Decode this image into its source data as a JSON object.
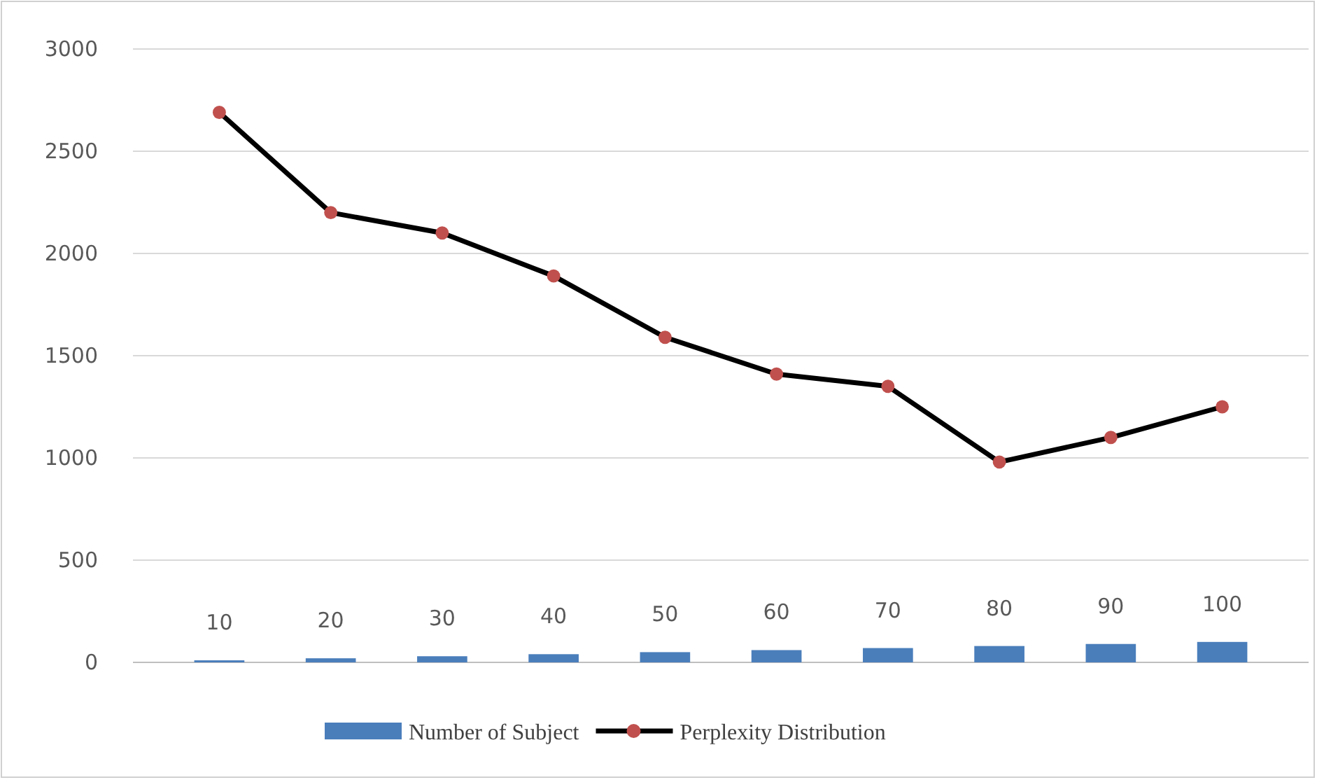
{
  "chart_data": {
    "type": "bar",
    "categories": [
      null,
      null,
      null,
      null,
      null,
      null,
      null,
      null,
      null,
      null
    ],
    "series": [
      {
        "name": "Number of Subject",
        "color": "#4a7ebb",
        "values": [
          10,
          20,
          30,
          40,
          50,
          60,
          70,
          80,
          90,
          100
        ],
        "value_labels": [
          "10",
          "20",
          "30",
          "40",
          "50",
          "60",
          "70",
          "80",
          "90",
          "100"
        ]
      },
      {
        "name": "Perplexity Distribution",
        "type": "line",
        "color": "#000000",
        "values": [
          2690,
          2200,
          2100,
          1890,
          1590,
          1410,
          1350,
          980,
          1100,
          1250
        ]
      }
    ],
    "ylim": [
      0,
      3000
    ],
    "yticks": [
      0,
      500,
      1000,
      1500,
      2000,
      2500,
      3000
    ],
    "grid": "y",
    "legend": "bottom",
    "marker": "circle",
    "line_style": "solid"
  }
}
